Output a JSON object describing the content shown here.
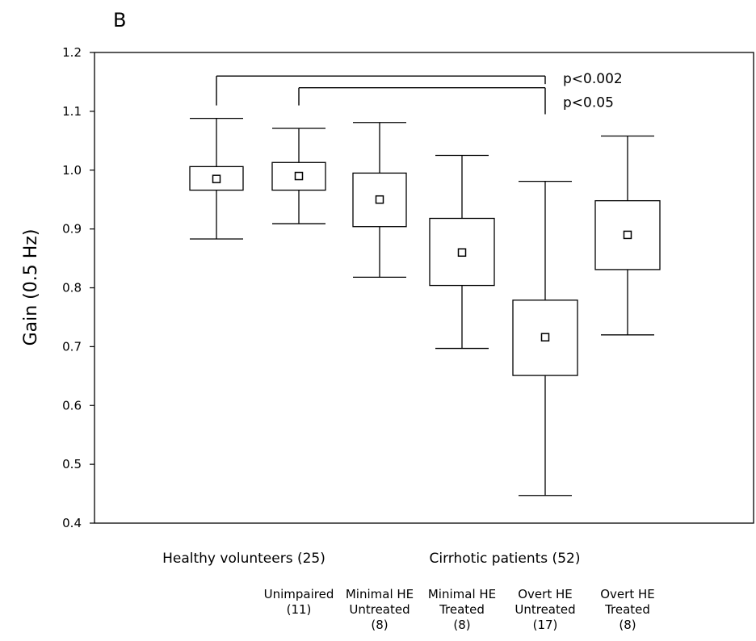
{
  "chart_data": {
    "type": "box",
    "panel_label": "B",
    "ylabel": "Gain (0.5 Hz)",
    "ylim": [
      0.4,
      1.2
    ],
    "yticks": [
      "0.4",
      "0.5",
      "0.6",
      "0.7",
      "0.8",
      "0.9",
      "1.0",
      "1.1",
      "1.2"
    ],
    "groups": [
      {
        "label": "Healthy volunteers (25)"
      },
      {
        "label": "Cirrhotic patients (52)"
      }
    ],
    "categories": [
      {
        "lines": [
          "Unimpaired",
          "(11)"
        ]
      },
      {
        "lines": [
          "Minimal HE",
          "Untreated",
          "(8)"
        ]
      },
      {
        "lines": [
          "Minimal HE",
          "Treated",
          "(8)"
        ]
      },
      {
        "lines": [
          "Overt HE",
          "Untreated",
          "(17)"
        ]
      },
      {
        "lines": [
          "Overt HE",
          "Treated",
          "(8)"
        ]
      }
    ],
    "boxes": [
      {
        "whisker_low": 0.883,
        "q1": 0.966,
        "mean": 0.985,
        "q3": 1.006,
        "whisker_high": 1.088
      },
      {
        "whisker_low": 0.909,
        "q1": 0.966,
        "mean": 0.99,
        "q3": 1.013,
        "whisker_high": 1.071
      },
      {
        "whisker_low": 0.818,
        "q1": 0.904,
        "mean": 0.95,
        "q3": 0.995,
        "whisker_high": 1.081
      },
      {
        "whisker_low": 0.697,
        "q1": 0.804,
        "mean": 0.86,
        "q3": 0.918,
        "whisker_high": 1.025
      },
      {
        "whisker_low": 0.447,
        "q1": 0.651,
        "mean": 0.716,
        "q3": 0.779,
        "whisker_high": 0.981
      },
      {
        "whisker_low": 0.72,
        "q1": 0.831,
        "mean": 0.89,
        "q3": 0.948,
        "whisker_high": 1.058
      }
    ],
    "significance": [
      {
        "from": 0,
        "to": 4,
        "y_level": 1.16,
        "label": "p<0.002"
      },
      {
        "from": 1,
        "to": 4,
        "y_level": 1.14,
        "label": "p<0.05"
      }
    ]
  }
}
